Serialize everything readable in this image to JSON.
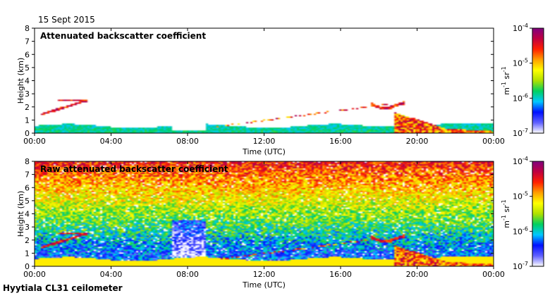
{
  "figure": {
    "date": "15 Sept 2015",
    "footer": "Hyytiala CL31 ceilometer"
  },
  "chart_data": [
    {
      "type": "heatmap",
      "title": "Attenuated backscatter coefficient",
      "xlabel": "Time (UTC)",
      "ylabel": "Height (km)",
      "x_ticks": [
        "00:00",
        "04:00",
        "08:00",
        "12:00",
        "16:00",
        "20:00",
        "00:00"
      ],
      "x_range_hours": [
        0,
        24
      ],
      "y_ticks": [
        0,
        1,
        2,
        3,
        4,
        5,
        6,
        7,
        8
      ],
      "ylim": [
        0,
        8
      ],
      "colorbar": {
        "label": "m-1 sr-1",
        "scale": "log",
        "ticks": [
          "10-7",
          "10-6",
          "10-5",
          "10-4"
        ],
        "range": [
          1e-07,
          0.0001
        ],
        "colors": [
          "#ffffff",
          "#6060ff",
          "#0010ff",
          "#00c8ff",
          "#00d060",
          "#b0e000",
          "#ffff00",
          "#ffa000",
          "#ff2000",
          "#c00040",
          "#800080"
        ]
      },
      "features": [
        {
          "name": "boundary layer",
          "hours": [
            0,
            24
          ],
          "top_km": 0.7
        },
        {
          "name": "cloud layer",
          "hours": [
            0.3,
            2.8
          ],
          "height_km": [
            1.4,
            2.5
          ]
        },
        {
          "name": "scattered cloud",
          "hours": [
            9.5,
            18.5
          ],
          "height_km": [
            0.5,
            2.2
          ]
        },
        {
          "name": "cloud layer",
          "hours": [
            17.6,
            19.3
          ],
          "height_km": [
            1.8,
            2.4
          ]
        },
        {
          "name": "precipitation",
          "hours": [
            18.8,
            21.5
          ],
          "height_km": [
            0,
            1.6
          ]
        }
      ]
    },
    {
      "type": "heatmap",
      "title": "Raw attenuated backscatter coefficient",
      "xlabel": "Time (UTC)",
      "ylabel": "Height (km)",
      "x_ticks": [
        "00:00",
        "04:00",
        "08:00",
        "12:00",
        "16:00",
        "20:00",
        "00:00"
      ],
      "x_range_hours": [
        0,
        24
      ],
      "y_ticks": [
        0,
        1,
        2,
        3,
        4,
        5,
        6,
        7,
        8
      ],
      "ylim": [
        0,
        8
      ],
      "colorbar": {
        "label": "m-1 sr-1",
        "scale": "log",
        "ticks": [
          "10-7",
          "10-6",
          "10-5",
          "10-4"
        ],
        "range": [
          1e-07,
          0.0001
        ],
        "colors": [
          "#ffffff",
          "#6060ff",
          "#0010ff",
          "#00c8ff",
          "#00d060",
          "#b0e000",
          "#ffff00",
          "#ffa000",
          "#ff2000",
          "#c00040",
          "#800080"
        ]
      },
      "features": [
        {
          "name": "noise gradient",
          "description": "increasing with height"
        },
        {
          "name": "cloud layer",
          "hours": [
            0.3,
            2.8
          ],
          "height_km": [
            1.4,
            2.5
          ]
        },
        {
          "name": "precipitation",
          "hours": [
            18.8,
            21.5
          ],
          "height_km": [
            0,
            1.6
          ]
        }
      ]
    }
  ]
}
